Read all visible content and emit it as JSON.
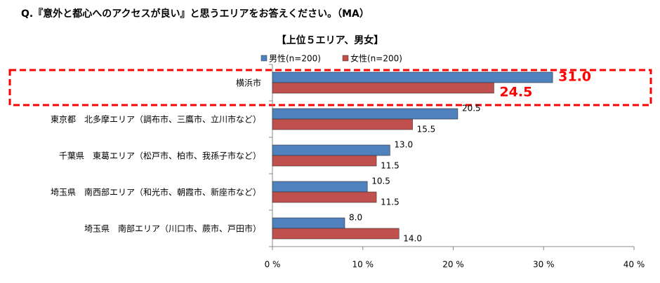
{
  "chart_data": {
    "type": "hbar",
    "title": "Q.『意外と都心へのアクセスが良い』と思うエリアをお答えください。（MA）",
    "subtitle": "【上位５エリア、男女】",
    "categories": [
      "横浜市",
      "東京都　北多摩エリア（調布市、三鷹市、立川市など）",
      "千葉県　東葛エリア（松戸市、柏市、我孫子市など）",
      "埼玉県　南西部エリア（和光市、朝霞市、新座市など）",
      "埼玉県　南部エリア（川口市、蕨市、戸田市）"
    ],
    "series": [
      {
        "name": "男性(n=200)",
        "color": "#4f81bd",
        "values": [
          31.0,
          20.5,
          13.0,
          10.5,
          8.0
        ],
        "value_labels": [
          "31.0",
          "20.5",
          "13.0",
          "10.5",
          "8.0"
        ]
      },
      {
        "name": "女性(n=200)",
        "color": "#c0504d",
        "values": [
          24.5,
          15.5,
          11.5,
          11.5,
          14.0
        ],
        "value_labels": [
          "24.5",
          "15.5",
          "11.5",
          "11.5",
          "14.0"
        ]
      }
    ],
    "xlim": [
      0,
      40
    ],
    "xticks": [
      {
        "value": 0,
        "label": "0 %"
      },
      {
        "value": 10,
        "label": "10 %"
      },
      {
        "value": 20,
        "label": "20 %"
      },
      {
        "value": 30,
        "label": "30 %"
      },
      {
        "value": 40,
        "label": "40 %"
      }
    ]
  }
}
